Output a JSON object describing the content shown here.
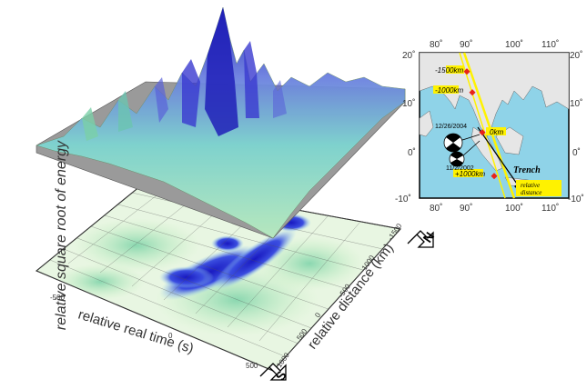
{
  "figure": {
    "ylabel": "relative square root of energy",
    "xaxis_label": "relative real time (s)",
    "xaxis_ticks": [
      "-500",
      "0",
      "500"
    ],
    "yaxis_label": "relative distance (km)",
    "yaxis_ticks": [
      "-1500",
      "-1000",
      "-500",
      "0",
      "500",
      "1000"
    ],
    "north_label": "N",
    "south_label": "S"
  },
  "map": {
    "lon_ticks": [
      "80˚",
      "90˚",
      "100˚",
      "110˚"
    ],
    "lat_ticks": [
      "20˚",
      "10˚",
      "0˚",
      "-10˚"
    ],
    "markers": [
      {
        "label": "-1500km"
      },
      {
        "label": "-1000km"
      },
      {
        "label": "0km"
      },
      {
        "label": "+1000km"
      }
    ],
    "date1": "12/26/2004",
    "date2": "11/2/2002",
    "trench_label": "Trench",
    "relative_label_1": "relative",
    "relative_label_2": "distance"
  },
  "colors": {
    "sea": "#8fd3e8",
    "land": "#e6e6e6",
    "marker": "#e8231a",
    "highlight": "#fff200",
    "peak": "#2a2fbf",
    "low": "#a7e6a0"
  }
}
